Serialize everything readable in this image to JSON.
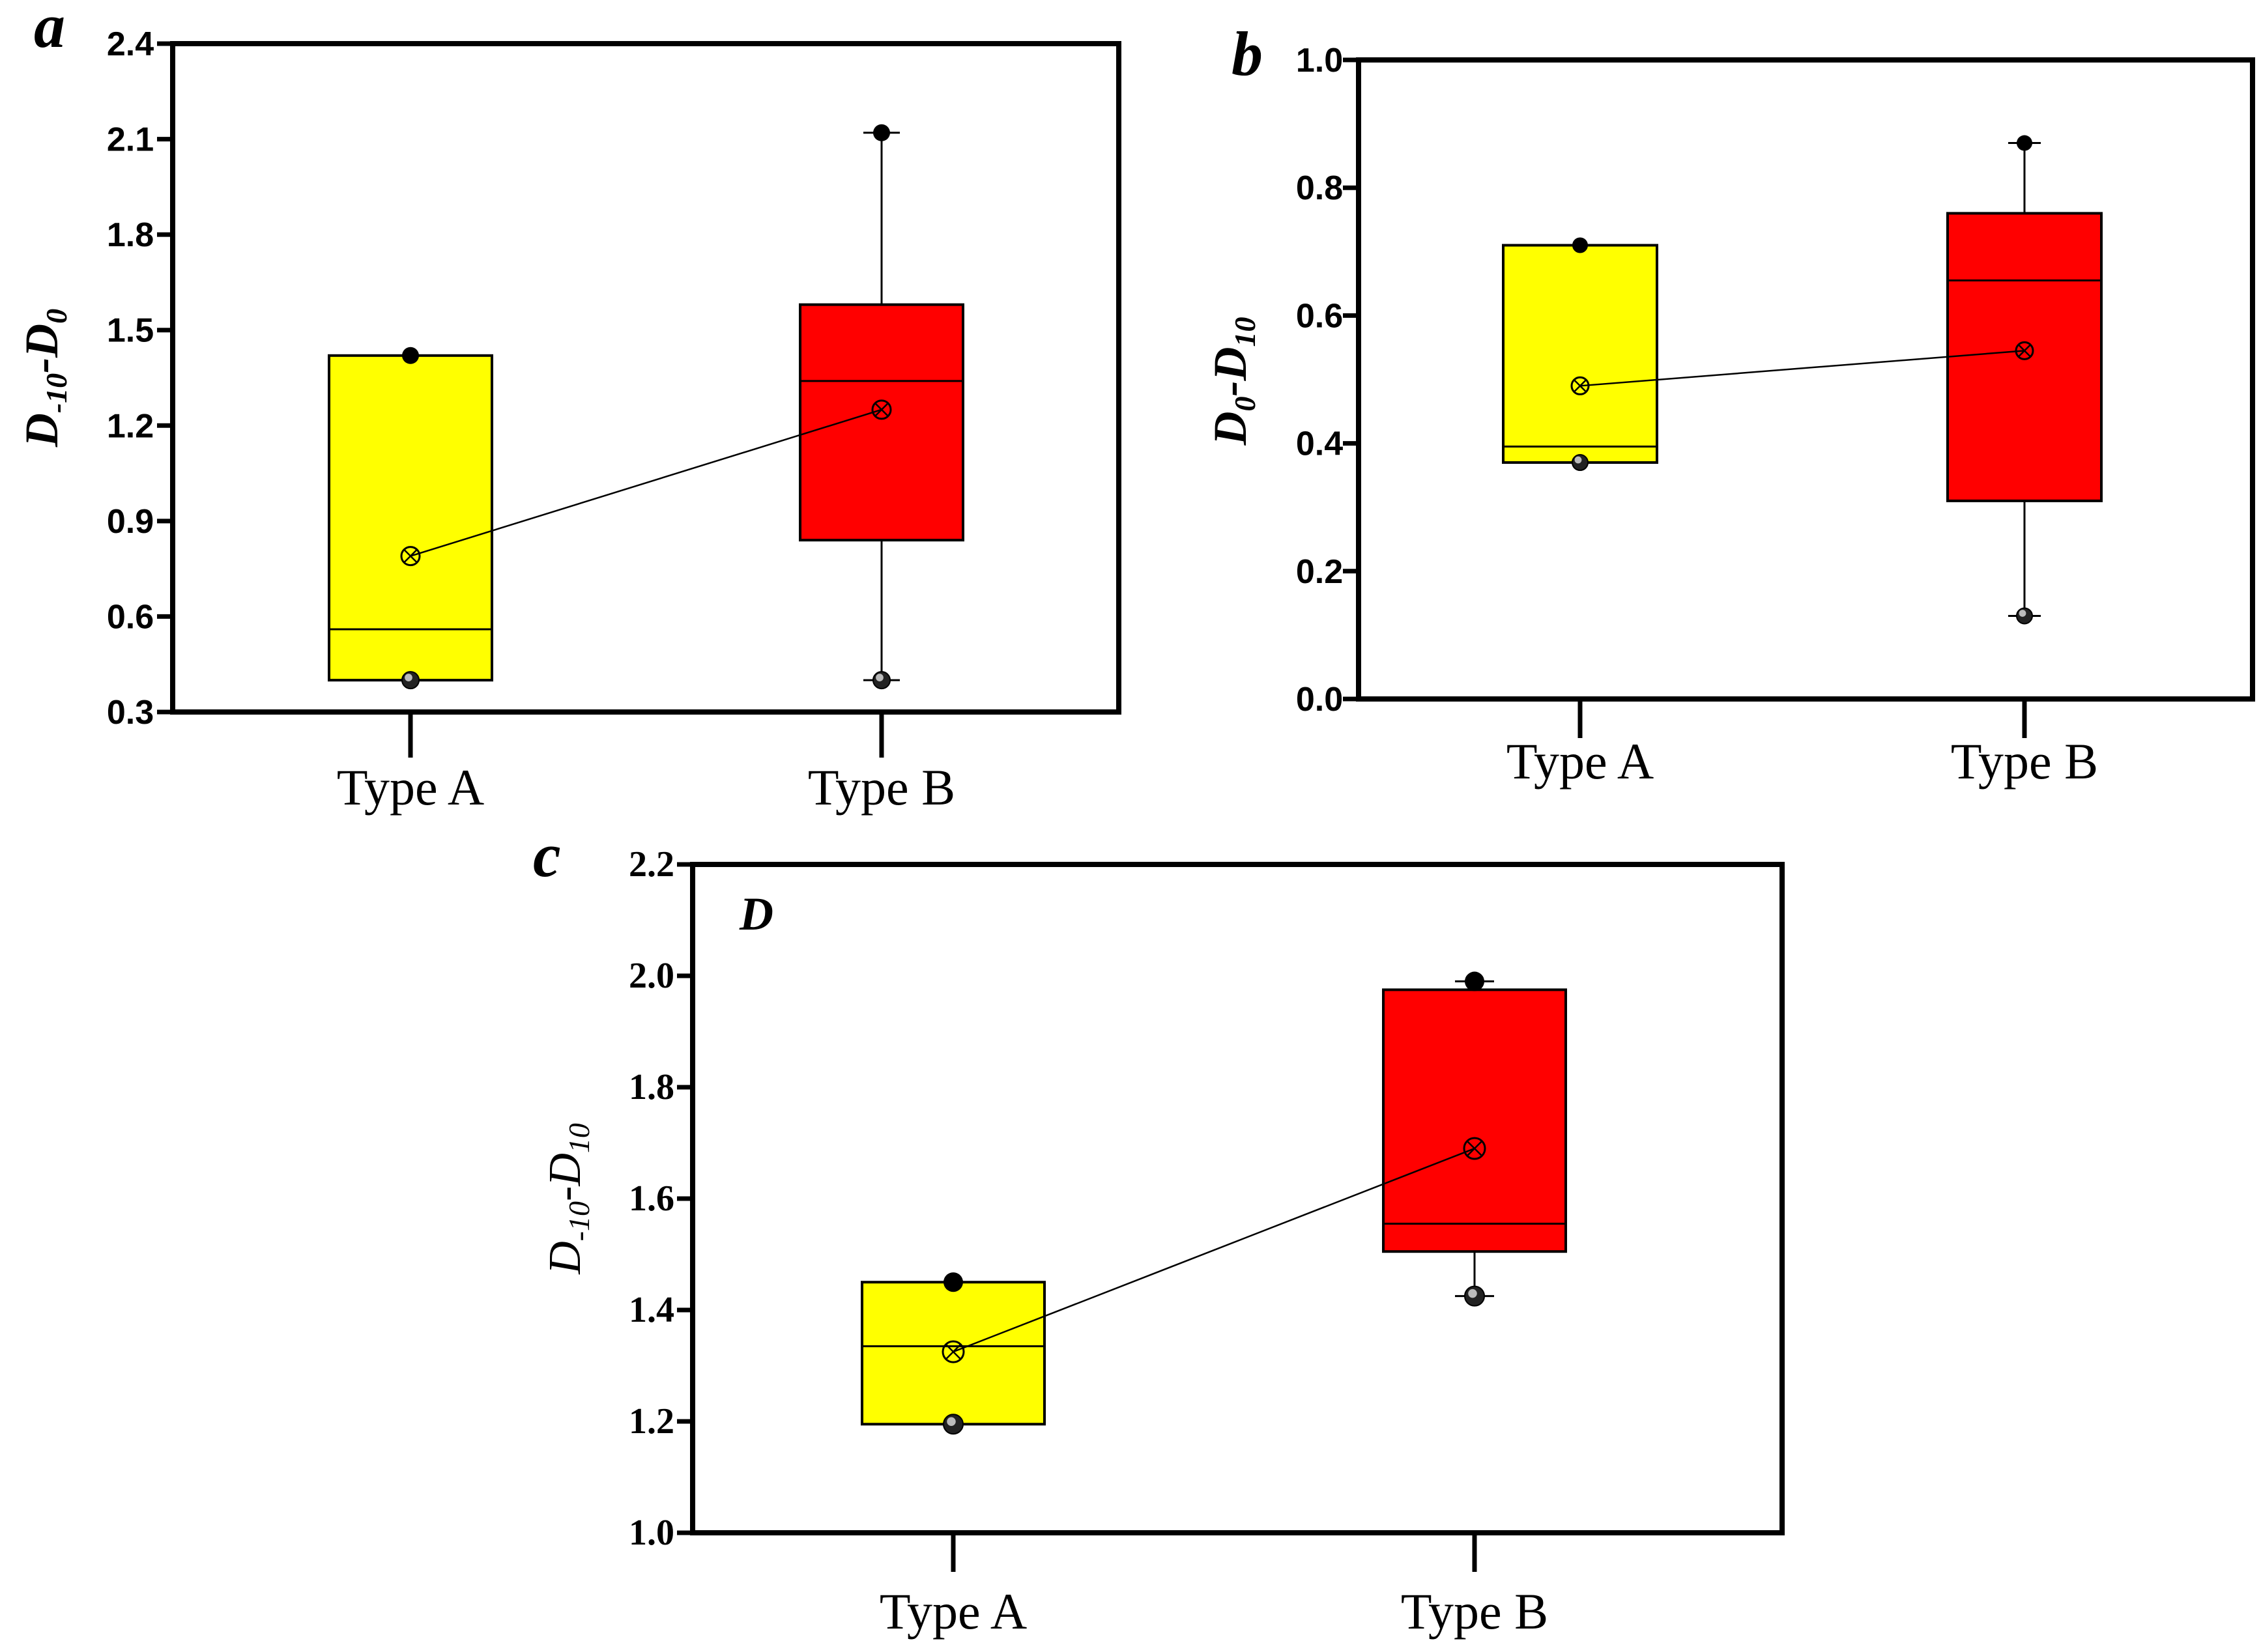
{
  "chart_data": [
    {
      "type": "box",
      "panel_label": "a",
      "ylabel": {
        "main": "D",
        "sub1": "-10",
        "mid": "-D",
        "sub2": "0"
      },
      "ylim": [
        0.3,
        2.4
      ],
      "yticks": [
        "0.3",
        "0.6",
        "0.9",
        "1.2",
        "1.5",
        "1.8",
        "2.1",
        "2.4"
      ],
      "categories": [
        "Type A",
        "Type B"
      ],
      "colors": [
        "#ffff00",
        "#ff0000"
      ],
      "boxes": [
        {
          "category": "Type A",
          "q1": 0.4,
          "median": 0.56,
          "q3": 1.42,
          "whisker_low": 0.4,
          "whisker_high": 1.42,
          "mean": 0.79,
          "min": 0.4,
          "max": 1.42
        },
        {
          "category": "Type B",
          "q1": 0.84,
          "median": 1.34,
          "q3": 1.58,
          "whisker_low": 0.4,
          "whisker_high": 2.12,
          "mean": 1.25,
          "min": 0.4,
          "max": 2.12
        }
      ]
    },
    {
      "type": "box",
      "panel_label": "b",
      "ylabel": {
        "main": "D",
        "sub1": "0",
        "mid": "-D",
        "sub2": "10"
      },
      "ylim": [
        0.0,
        1.0
      ],
      "yticks": [
        "0.0",
        "0.2",
        "0.4",
        "0.6",
        "0.8",
        "1.0"
      ],
      "categories": [
        "Type A",
        "Type B"
      ],
      "colors": [
        "#ffff00",
        "#ff0000"
      ],
      "boxes": [
        {
          "category": "Type A",
          "q1": 0.37,
          "median": 0.395,
          "q3": 0.71,
          "whisker_low": 0.37,
          "whisker_high": 0.71,
          "mean": 0.49,
          "min": 0.37,
          "max": 0.71
        },
        {
          "category": "Type B",
          "q1": 0.31,
          "median": 0.655,
          "q3": 0.76,
          "whisker_low": 0.13,
          "whisker_high": 0.87,
          "mean": 0.545,
          "min": 0.13,
          "max": 0.87
        }
      ]
    },
    {
      "type": "box",
      "panel_label": "c",
      "annotation": "D",
      "ylabel": {
        "main": "D",
        "sub1": "-10",
        "mid": "-D",
        "sub2": "10"
      },
      "ylim": [
        1.0,
        2.2
      ],
      "yticks": [
        "1.0",
        "1.2",
        "1.4",
        "1.6",
        "1.8",
        "2.0",
        "2.2"
      ],
      "categories": [
        "Type A",
        "Type B"
      ],
      "colors": [
        "#ffff00",
        "#ff0000"
      ],
      "boxes": [
        {
          "category": "Type A",
          "q1": 1.195,
          "median": 1.335,
          "q3": 1.45,
          "whisker_low": 1.195,
          "whisker_high": 1.45,
          "mean": 1.325,
          "min": 1.195,
          "max": 1.45
        },
        {
          "category": "Type B",
          "q1": 1.505,
          "median": 1.555,
          "q3": 1.975,
          "whisker_low": 1.425,
          "whisker_high": 1.99,
          "mean": 1.69,
          "min": 1.425,
          "max": 1.99
        }
      ]
    }
  ]
}
